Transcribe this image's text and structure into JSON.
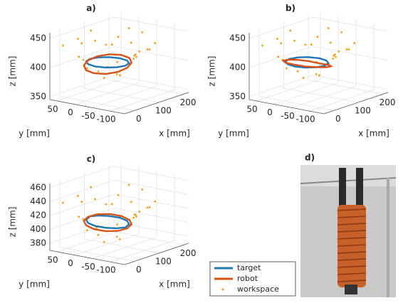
{
  "chart_data": [
    {
      "type": "scatter3d",
      "title": "a)",
      "xlabel": "x [mm]",
      "ylabel": "y [mm]",
      "zlabel": "z [mm]",
      "xlim": [
        -40,
        220
      ],
      "ylim": [
        -140,
        70
      ],
      "zlim": [
        345,
        460
      ],
      "xticks": [
        0,
        100,
        200
      ],
      "yticks": [
        50,
        0,
        -50,
        -100
      ],
      "zticks": [
        350,
        400,
        450
      ],
      "grid": true,
      "series": [
        {
          "name": "workspace",
          "color": "#f0a020",
          "x": [
            -30,
            0,
            20,
            40,
            60,
            80,
            100,
            120,
            140,
            160,
            180,
            -10,
            30,
            70,
            110,
            150,
            190,
            10,
            50,
            90,
            130,
            170,
            -20,
            45,
            85,
            125,
            165,
            5,
            65,
            105
          ],
          "y": [
            40,
            -100,
            30,
            -110,
            50,
            -90,
            40,
            -60,
            20,
            -20,
            0,
            -40,
            -70,
            10,
            -100,
            -50,
            -30,
            0,
            -20,
            -120,
            30,
            -80,
            -10,
            50,
            -40,
            -5,
            20,
            -60,
            -95,
            55
          ],
          "z": [
            440,
            430,
            415,
            425,
            430,
            420,
            430,
            415,
            420,
            425,
            445,
            410,
            395,
            385,
            430,
            415,
            440,
            400,
            380,
            435,
            420,
            430,
            420,
            440,
            382,
            395,
            430,
            410,
            425,
            445
          ]
        },
        {
          "name": "target",
          "color": "#1f77b4",
          "x": [
            100,
            93,
            75,
            50,
            25,
            7,
            0,
            7,
            25,
            50,
            75,
            93
          ],
          "y": [
            -30,
            -5,
            13,
            20,
            13,
            -5,
            -30,
            -55,
            -73,
            -80,
            -73,
            -55
          ],
          "z": [
            408,
            408,
            408,
            408,
            408,
            408,
            408,
            408,
            408,
            408,
            408,
            408
          ]
        },
        {
          "name": "robot",
          "color": "#d95319",
          "x": [
            105,
            98,
            78,
            50,
            23,
            2,
            -5,
            2,
            23,
            50,
            78,
            98
          ],
          "y": [
            -30,
            -3,
            18,
            25,
            18,
            -3,
            -30,
            -58,
            -78,
            -85,
            -78,
            -58
          ],
          "z": [
            413,
            412,
            409,
            405,
            401,
            398,
            397,
            398,
            401,
            405,
            409,
            412
          ]
        }
      ]
    },
    {
      "type": "scatter3d",
      "title": "b)",
      "xlabel": "x [mm]",
      "ylabel": "y [mm]",
      "zlabel": "z [mm]",
      "xlim": [
        -40,
        220
      ],
      "ylim": [
        -140,
        70
      ],
      "zlim": [
        345,
        460
      ],
      "xticks": [
        0,
        100,
        200
      ],
      "yticks": [
        50,
        0,
        -50,
        -100
      ],
      "zticks": [
        350,
        400,
        450
      ],
      "grid": true,
      "series": [
        {
          "name": "workspace",
          "color": "#f0a020",
          "x": [
            -30,
            0,
            20,
            40,
            60,
            80,
            100,
            120,
            140,
            160,
            180,
            -10,
            30,
            70,
            110,
            150,
            190,
            10,
            50,
            90,
            130,
            170,
            -20,
            45,
            85,
            125,
            165,
            5,
            65,
            105
          ],
          "y": [
            40,
            -100,
            30,
            -110,
            50,
            -90,
            40,
            -60,
            20,
            -20,
            0,
            -40,
            -70,
            10,
            -100,
            -50,
            -30,
            0,
            -20,
            -120,
            30,
            -80,
            -10,
            50,
            -40,
            -5,
            20,
            -60,
            -95,
            55
          ],
          "z": [
            440,
            430,
            415,
            425,
            430,
            420,
            430,
            415,
            420,
            425,
            445,
            410,
            395,
            385,
            430,
            415,
            440,
            400,
            380,
            435,
            420,
            430,
            420,
            440,
            382,
            395,
            430,
            410,
            425,
            445
          ]
        },
        {
          "name": "target",
          "color": "#1f77b4",
          "x": [
            100,
            93,
            75,
            50,
            25,
            7,
            0,
            7,
            25,
            50,
            75,
            93
          ],
          "y": [
            -30,
            -5,
            13,
            20,
            13,
            -5,
            -30,
            -55,
            -73,
            -80,
            -73,
            -55
          ],
          "z": [
            408,
            408,
            408,
            408,
            408,
            408,
            408,
            408,
            408,
            408,
            408,
            408
          ]
        },
        {
          "name": "robot",
          "color": "#d95319",
          "x": [
            105,
            98,
            78,
            50,
            23,
            2,
            -5,
            2,
            23,
            50,
            78,
            98
          ],
          "y": [
            -30,
            -3,
            18,
            25,
            18,
            -3,
            -30,
            -58,
            -78,
            -85,
            -78,
            -58
          ],
          "z": [
            398,
            400,
            403,
            406,
            409,
            411,
            412,
            411,
            409,
            406,
            403,
            400
          ]
        }
      ]
    },
    {
      "type": "scatter3d",
      "title": "c)",
      "xlabel": "x [mm]",
      "ylabel": "y [mm]",
      "zlabel": "z [mm]",
      "xlim": [
        -40,
        220
      ],
      "ylim": [
        -140,
        70
      ],
      "zlim": [
        370,
        466
      ],
      "xticks": [
        0,
        100,
        200
      ],
      "yticks": [
        50,
        0,
        -50,
        -100
      ],
      "zticks": [
        380,
        400,
        420,
        440,
        460
      ],
      "grid": true,
      "legend": true,
      "series": [
        {
          "name": "workspace",
          "color": "#f0a020",
          "x": [
            -30,
            0,
            20,
            40,
            60,
            80,
            100,
            120,
            140,
            160,
            180,
            -10,
            30,
            70,
            110,
            150,
            190,
            10,
            50,
            90,
            130,
            170,
            -20,
            45,
            85,
            125,
            165,
            5,
            65,
            105
          ],
          "y": [
            40,
            -100,
            30,
            -110,
            50,
            -90,
            40,
            -60,
            20,
            -20,
            0,
            -40,
            -70,
            10,
            -100,
            -50,
            -30,
            0,
            -20,
            -120,
            30,
            -80,
            -10,
            50,
            -40,
            -5,
            20,
            -60,
            -95,
            55
          ],
          "z": [
            440,
            430,
            415,
            425,
            430,
            420,
            430,
            415,
            420,
            425,
            445,
            410,
            395,
            385,
            430,
            415,
            440,
            400,
            380,
            435,
            420,
            430,
            420,
            440,
            382,
            395,
            430,
            410,
            425,
            445
          ]
        },
        {
          "name": "target",
          "color": "#1f77b4",
          "x": [
            100,
            93,
            75,
            50,
            25,
            7,
            0,
            7,
            25,
            50,
            75,
            93
          ],
          "y": [
            -30,
            -5,
            13,
            20,
            13,
            -5,
            -30,
            -55,
            -73,
            -80,
            -73,
            -55
          ],
          "z": [
            410,
            411,
            412,
            413,
            412,
            411,
            410,
            409,
            408,
            407,
            408,
            409
          ]
        },
        {
          "name": "robot",
          "color": "#d95319",
          "x": [
            105,
            98,
            78,
            50,
            23,
            2,
            -5,
            2,
            23,
            50,
            78,
            98
          ],
          "y": [
            -30,
            -3,
            18,
            25,
            18,
            -3,
            -30,
            -58,
            -78,
            -85,
            -78,
            -58
          ],
          "z": [
            412,
            413,
            413,
            412,
            410,
            408,
            406,
            405,
            405,
            406,
            408,
            410
          ]
        }
      ]
    }
  ],
  "photo": {
    "title": "d)"
  }
}
